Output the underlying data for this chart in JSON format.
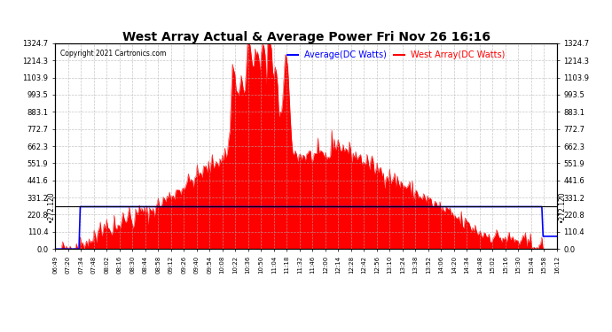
{
  "title": "West Array Actual & Average Power Fri Nov 26 16:16",
  "copyright": "Copyright 2021 Cartronics.com",
  "legend_avg": "Average(DC Watts)",
  "legend_west": "West Array(DC Watts)",
  "legend_avg_color": "#0000ff",
  "legend_west_color": "#ff0000",
  "ymin": 0.0,
  "ymax": 1324.7,
  "yticks": [
    0.0,
    110.4,
    220.8,
    331.2,
    441.6,
    551.9,
    662.3,
    772.7,
    883.1,
    993.5,
    1103.9,
    1214.3,
    1324.7
  ],
  "hline_value": 272.12,
  "hline_label": "272.120",
  "background_color": "#ffffff",
  "plot_bg_color": "#ffffff",
  "grid_color": "#b0b0b0",
  "fill_color": "#ff0000",
  "line_color": "#ff0000",
  "avg_line_color": "#0000ff",
  "xtick_labels": [
    "06:49",
    "07:20",
    "07:34",
    "07:48",
    "08:02",
    "08:16",
    "08:30",
    "08:44",
    "08:58",
    "09:12",
    "09:26",
    "09:40",
    "09:54",
    "10:08",
    "10:22",
    "10:36",
    "10:50",
    "11:04",
    "11:18",
    "11:32",
    "11:46",
    "12:00",
    "12:14",
    "12:28",
    "12:42",
    "12:56",
    "13:10",
    "13:24",
    "13:38",
    "13:52",
    "14:06",
    "14:20",
    "14:34",
    "14:48",
    "15:02",
    "15:16",
    "15:30",
    "15:44",
    "15:58",
    "16:12"
  ],
  "avg_flat_value": 272.12
}
